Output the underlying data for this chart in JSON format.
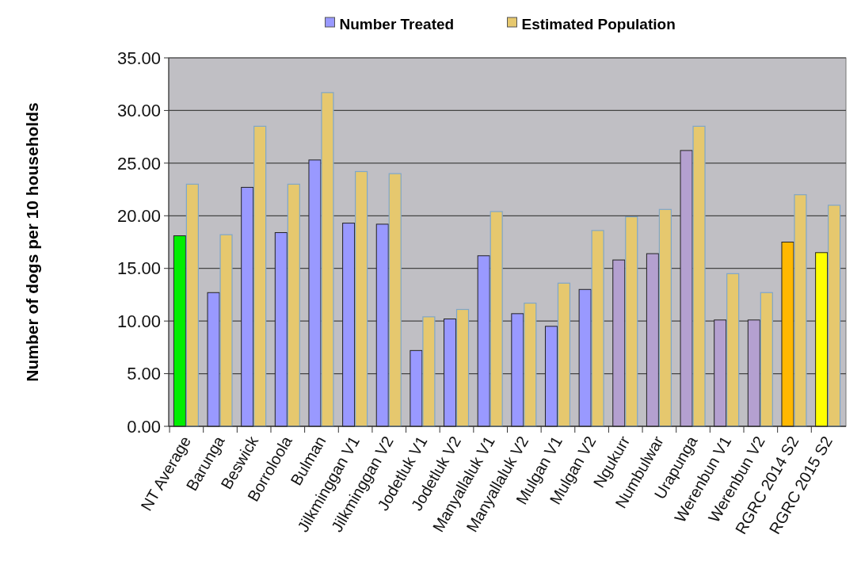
{
  "chart_data": {
    "type": "bar",
    "ylabel": "Number of dogs per 10 households",
    "categories": [
      "NT Average",
      "Barunga",
      "Beswick",
      "Borroloola",
      "Bulman",
      "Jilkminggan V1",
      "Jilkminggan V2",
      "Jodetluk V1",
      "Jodetluk V2",
      "Manyallaluk V1",
      "Manyallaluk V2",
      "Mulgan V1",
      "Mulgan V2",
      "Ngukurr",
      "Numbulwar",
      "Urapunga",
      "Werenbun V1",
      "Werenbun V2",
      "RGRC 2014 S2",
      "RGRC 2015 S2"
    ],
    "series": [
      {
        "name": "Number Treated",
        "color": "#9999ff",
        "colors": [
          "#00ee00",
          "#9999ff",
          "#9999ff",
          "#9999ff",
          "#9999ff",
          "#9999ff",
          "#9999ff",
          "#9999ff",
          "#9999ff",
          "#9999ff",
          "#9999ff",
          "#9999ff",
          "#9999ff",
          "#b4a0d0",
          "#b4a0d0",
          "#b4a0d0",
          "#b4a0d0",
          "#b4a0d0",
          "#ffb800",
          "#ffff00"
        ],
        "values": [
          18.1,
          12.7,
          22.7,
          18.4,
          25.3,
          19.3,
          19.2,
          7.2,
          10.2,
          16.2,
          10.7,
          9.5,
          13.0,
          15.8,
          16.4,
          26.2,
          10.1,
          10.1,
          17.5,
          16.5
        ]
      },
      {
        "name": "Estimated Population",
        "color": "#e6c86e",
        "values": [
          23.0,
          18.2,
          28.5,
          23.0,
          31.7,
          24.2,
          24.0,
          10.4,
          11.1,
          20.4,
          11.7,
          13.6,
          18.6,
          19.9,
          20.6,
          28.5,
          14.5,
          12.7,
          22.0,
          21.0
        ]
      }
    ],
    "ylim": [
      0,
      35
    ],
    "yticks": [
      {
        "value": 0,
        "label": "0.00"
      },
      {
        "value": 5,
        "label": "5.00"
      },
      {
        "value": 10,
        "label": "10.00"
      },
      {
        "value": 15,
        "label": "15.00"
      },
      {
        "value": 20,
        "label": "20.00"
      },
      {
        "value": 25,
        "label": "25.00"
      },
      {
        "value": 30,
        "label": "30.00"
      },
      {
        "value": 35,
        "label": "35.00"
      }
    ],
    "grid": "y",
    "legend": "top"
  }
}
